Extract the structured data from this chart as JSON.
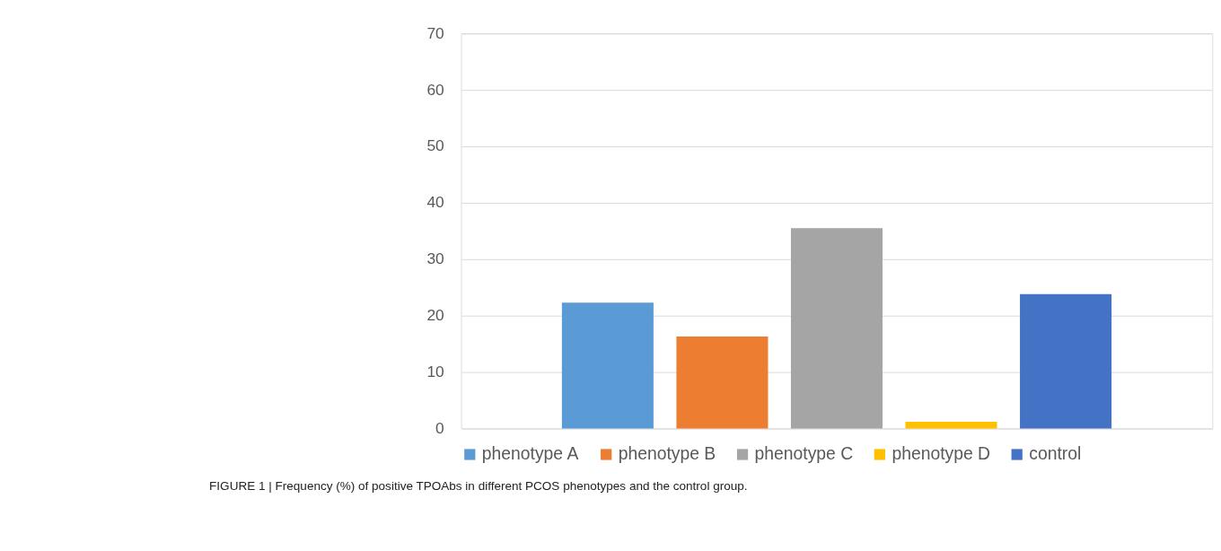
{
  "chart_data": {
    "type": "bar",
    "categories": [
      null
    ],
    "series": [
      {
        "name": "phenotype A",
        "color": "#5b9bd5",
        "values": [
          22.3
        ]
      },
      {
        "name": "phenotype B",
        "color": "#ed7d31",
        "values": [
          16.3
        ]
      },
      {
        "name": "phenotype C",
        "color": "#a5a5a5",
        "values": [
          35.5
        ]
      },
      {
        "name": "phenotype D",
        "color": "#ffc000",
        "values": [
          1.2
        ]
      },
      {
        "name": "control",
        "color": "#4472c4",
        "values": [
          23.8
        ]
      }
    ],
    "ylim": [
      0,
      70
    ],
    "yticks": [
      0,
      10,
      20,
      30,
      40,
      50,
      60,
      70
    ],
    "grid": "y",
    "legend": "bottom",
    "annotations": [
      "FIGURE 1 | Frequency (%) of positive TPOAbs in different PCOS phenotypes and the control group."
    ]
  }
}
